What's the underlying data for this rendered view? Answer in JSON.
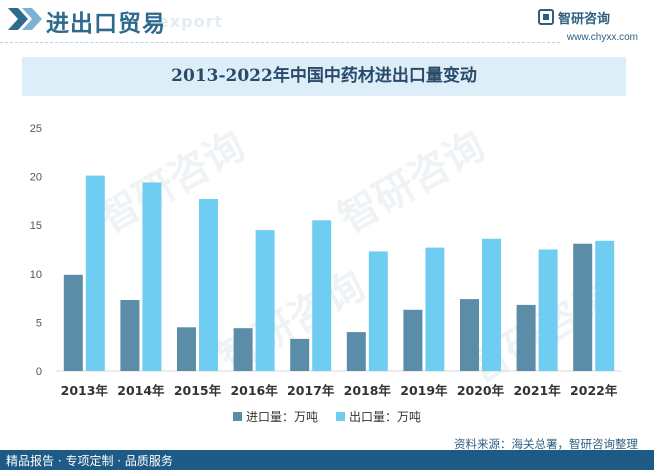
{
  "header": {
    "title": "进出口贸易",
    "ghost_text": "export",
    "brand_name": "智研咨询",
    "brand_url": "www.chyxx.com"
  },
  "watermark": {
    "text": "智研咨询"
  },
  "chart_data": {
    "type": "bar",
    "title": "2013-2022年中国中药材进出口量变动",
    "xlabel": "",
    "ylabel": "",
    "categories": [
      "2013年",
      "2014年",
      "2015年",
      "2016年",
      "2017年",
      "2018年",
      "2019年",
      "2020年",
      "2021年",
      "2022年"
    ],
    "ylim": [
      0,
      25
    ],
    "yticks": [
      0,
      5,
      10,
      15,
      20,
      25
    ],
    "grid": false,
    "legend_position": "bottom",
    "series": [
      {
        "name": "进口量：万吨",
        "color": "#5b8ca8",
        "values": [
          9.9,
          7.3,
          4.5,
          4.4,
          3.3,
          4.0,
          6.3,
          7.4,
          6.8,
          13.1
        ]
      },
      {
        "name": "出口量：万吨",
        "color": "#6fcdf2",
        "values": [
          20.1,
          19.4,
          17.7,
          14.5,
          15.5,
          12.3,
          12.7,
          13.6,
          12.5,
          13.4
        ]
      }
    ]
  },
  "footer": {
    "left_text": "精品报告 · 专项定制 · 品质服务",
    "source_text": "资料来源：海关总署，智研咨询整理"
  }
}
